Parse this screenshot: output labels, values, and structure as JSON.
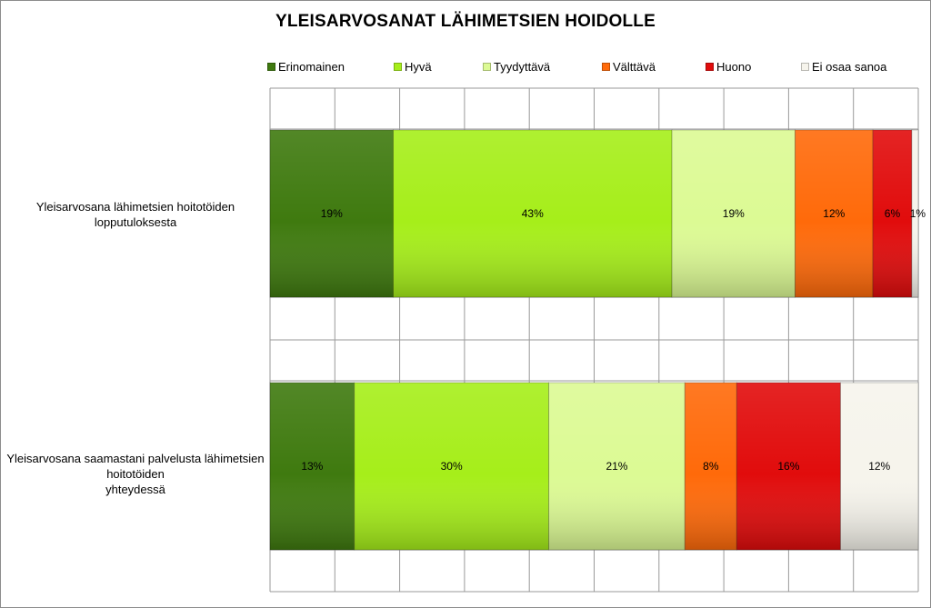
{
  "chart_data": {
    "type": "bar",
    "orientation": "horizontal",
    "stacked": "percent",
    "title": "YLEISARVOSANAT LÄHIMETSIEN HOIDOLLE",
    "categories": [
      "Yleisarvosana lähimetsien hoitotöiden lopputuloksesta",
      "Yleisarvosana saamastani palvelusta lähimetsien hoitotöiden yhteydessä"
    ],
    "series": [
      {
        "name": "Erinomainen",
        "color": "#3f7a0f",
        "values": [
          19,
          13
        ],
        "labels": [
          "19%",
          "13%"
        ]
      },
      {
        "name": "Hyvä",
        "color": "#a6ee1a",
        "values": [
          43,
          30
        ],
        "labels": [
          "43%",
          "30%"
        ]
      },
      {
        "name": "Tyydyttävä",
        "color": "#dcfa94",
        "values": [
          19,
          21
        ],
        "labels": [
          "19%",
          "21%"
        ]
      },
      {
        "name": "Välttävä",
        "color": "#ff6a0a",
        "values": [
          12,
          8
        ],
        "labels": [
          "12%",
          "8%"
        ]
      },
      {
        "name": "Huono",
        "color": "#e10c0c",
        "values": [
          6,
          16
        ],
        "labels": [
          "6%",
          "16%"
        ]
      },
      {
        "name": "Ei osaa sanoa",
        "color": "#f6f4ec",
        "values": [
          1,
          12
        ],
        "labels": [
          "1%",
          "12%"
        ]
      }
    ],
    "xlim": [
      0,
      100
    ],
    "grid": true,
    "legend_position": "top"
  }
}
